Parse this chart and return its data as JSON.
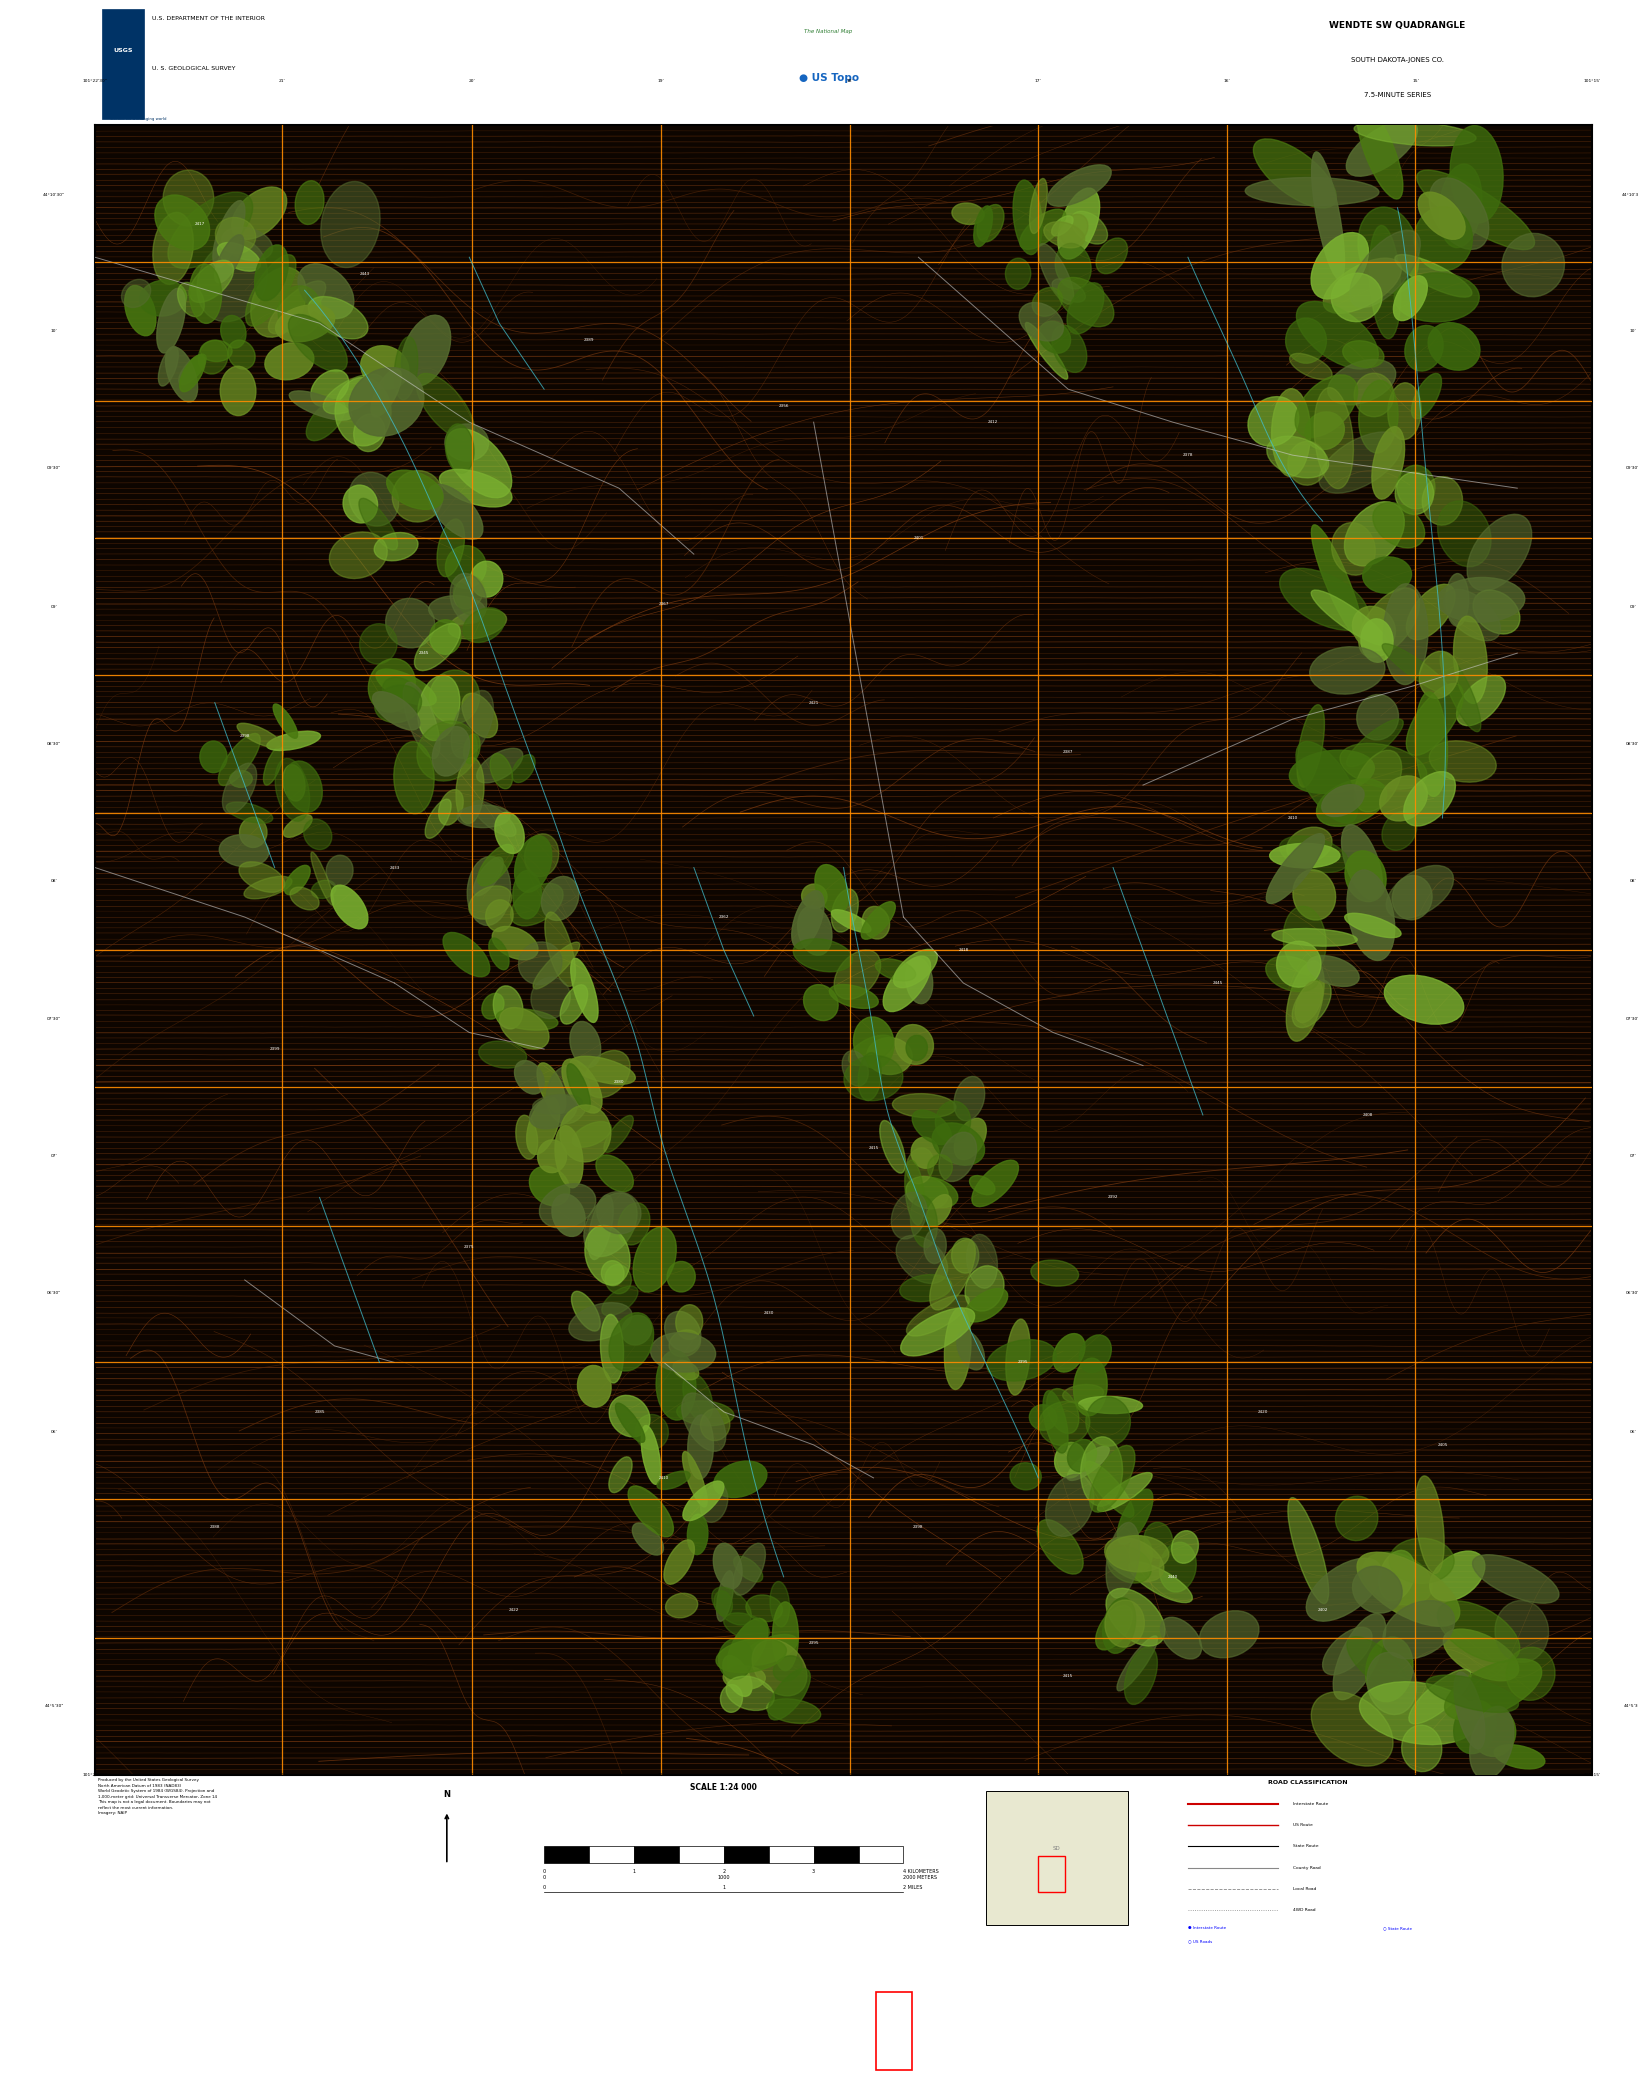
{
  "title": "WENDTE SW QUADRANGLE",
  "subtitle1": "SOUTH DAKOTA-JONES CO.",
  "subtitle2": "7.5-MINUTE SERIES",
  "dept_line1": "U.S. DEPARTMENT OF THE INTERIOR",
  "dept_line2": "U. S. GEOLOGICAL SURVEY",
  "scale_text": "SCALE 1:24 000",
  "road_class_title": "ROAD CLASSIFICATION",
  "fig_width": 16.38,
  "fig_height": 20.88,
  "map_bg_color": "#0d0500",
  "contour_color": "#7B3A10",
  "contour_color2": "#5C2A08",
  "grid_color_orange": "#FF8C00",
  "water_color": "#40C0D0",
  "veg_color1": "#556B2F",
  "veg_color2": "#6B8E23",
  "veg_color3": "#4a7a10",
  "veg_color4": "#3d6b0d",
  "veg_color5": "#7ab030",
  "road_white": "#DDDDDD",
  "road_gray": "#888888"
}
